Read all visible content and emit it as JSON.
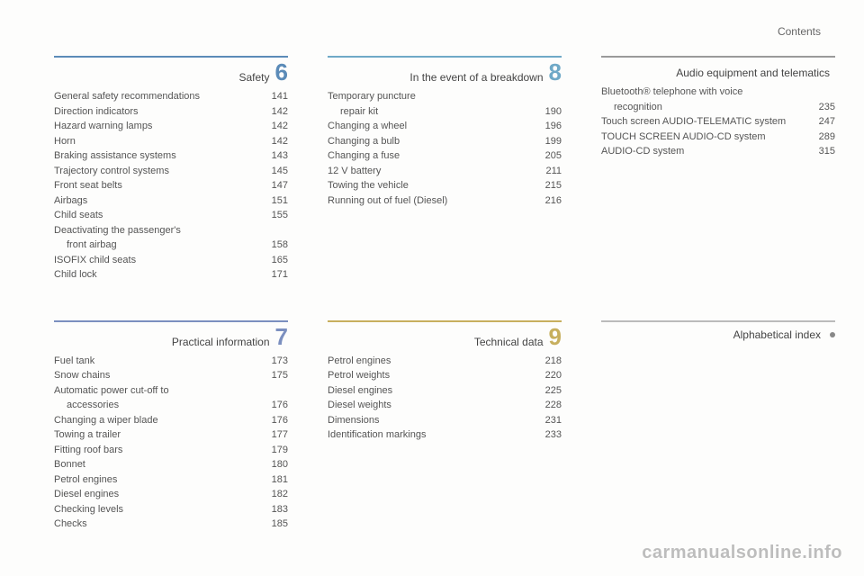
{
  "header": {
    "label": "Contents"
  },
  "colors": {
    "c6": "#5b8bb8",
    "c7": "#7b8fbf",
    "c8": "#6fa9c7",
    "c9": "#c7af5e",
    "cA": "#9a9a9a"
  },
  "sections": [
    {
      "slot": "r1c1",
      "name": "section-safety",
      "number": "6",
      "title": "Safety",
      "items": [
        {
          "label": "General safety recommendations",
          "page": "141"
        },
        {
          "label": "Direction indicators",
          "page": "142"
        },
        {
          "label": "Hazard warning lamps",
          "page": "142"
        },
        {
          "label": "Horn",
          "page": "142"
        },
        {
          "label": "Braking assistance systems",
          "page": "143"
        },
        {
          "label": "Trajectory control systems",
          "page": "145"
        },
        {
          "label": "Front seat belts",
          "page": "147"
        },
        {
          "label": "Airbags",
          "page": "151"
        },
        {
          "label": "Child seats",
          "page": "155"
        },
        {
          "label": "Deactivating the passenger's",
          "page": ""
        },
        {
          "label": "front airbag",
          "page": "158",
          "indent": true
        },
        {
          "label": "ISOFIX child seats",
          "page": "165"
        },
        {
          "label": "Child lock",
          "page": "171"
        }
      ]
    },
    {
      "slot": "r1c2",
      "name": "section-breakdown",
      "number": "8",
      "title": "In the event of a breakdown",
      "items": [
        {
          "label": "Temporary puncture",
          "page": ""
        },
        {
          "label": "repair kit",
          "page": "190",
          "indent": true
        },
        {
          "label": "Changing a wheel",
          "page": "196"
        },
        {
          "label": "Changing a bulb",
          "page": "199"
        },
        {
          "label": "Changing a fuse",
          "page": "205"
        },
        {
          "label": "12 V battery",
          "page": "211"
        },
        {
          "label": "Towing the vehicle",
          "page": "215"
        },
        {
          "label": "Running out of fuel (Diesel)",
          "page": "216"
        }
      ]
    },
    {
      "slot": "r1c3",
      "name": "section-audio",
      "number": "",
      "title": "Audio equipment and telematics",
      "items": [
        {
          "label": "Bluetooth® telephone with voice",
          "page": ""
        },
        {
          "label": "recognition",
          "page": "235",
          "indent": true
        },
        {
          "label": "Touch screen AUDIO-TELEMATIC system",
          "page": "247"
        },
        {
          "label": "TOUCH SCREEN AUDIO-CD system",
          "page": "289"
        },
        {
          "label": "AUDIO-CD system",
          "page": "315"
        }
      ]
    },
    {
      "slot": "r2c1",
      "name": "section-practical",
      "number": "7",
      "title": "Practical information",
      "items": [
        {
          "label": "Fuel tank",
          "page": "173"
        },
        {
          "label": "Snow chains",
          "page": "175"
        },
        {
          "label": "Automatic power cut-off to",
          "page": ""
        },
        {
          "label": "accessories",
          "page": "176",
          "indent": true
        },
        {
          "label": "Changing a wiper blade",
          "page": "176"
        },
        {
          "label": "Towing a trailer",
          "page": "177"
        },
        {
          "label": "Fitting roof bars",
          "page": "179"
        },
        {
          "label": "Bonnet",
          "page": "180"
        },
        {
          "label": "Petrol engines",
          "page": "181"
        },
        {
          "label": "Diesel engines",
          "page": "182"
        },
        {
          "label": "Checking levels",
          "page": "183"
        },
        {
          "label": "Checks",
          "page": "185"
        }
      ]
    },
    {
      "slot": "r2c2",
      "name": "section-technical",
      "number": "9",
      "title": "Technical data",
      "items": [
        {
          "label": "Petrol engines",
          "page": "218"
        },
        {
          "label": "Petrol weights",
          "page": "220"
        },
        {
          "label": "Diesel engines",
          "page": "225"
        },
        {
          "label": "Diesel weights",
          "page": "228"
        },
        {
          "label": "Dimensions",
          "page": "231"
        },
        {
          "label": "Identification markings",
          "page": "233"
        }
      ]
    }
  ],
  "alphaIndex": {
    "label": "Alphabetical index"
  },
  "watermark": "carmanualsonline.info"
}
